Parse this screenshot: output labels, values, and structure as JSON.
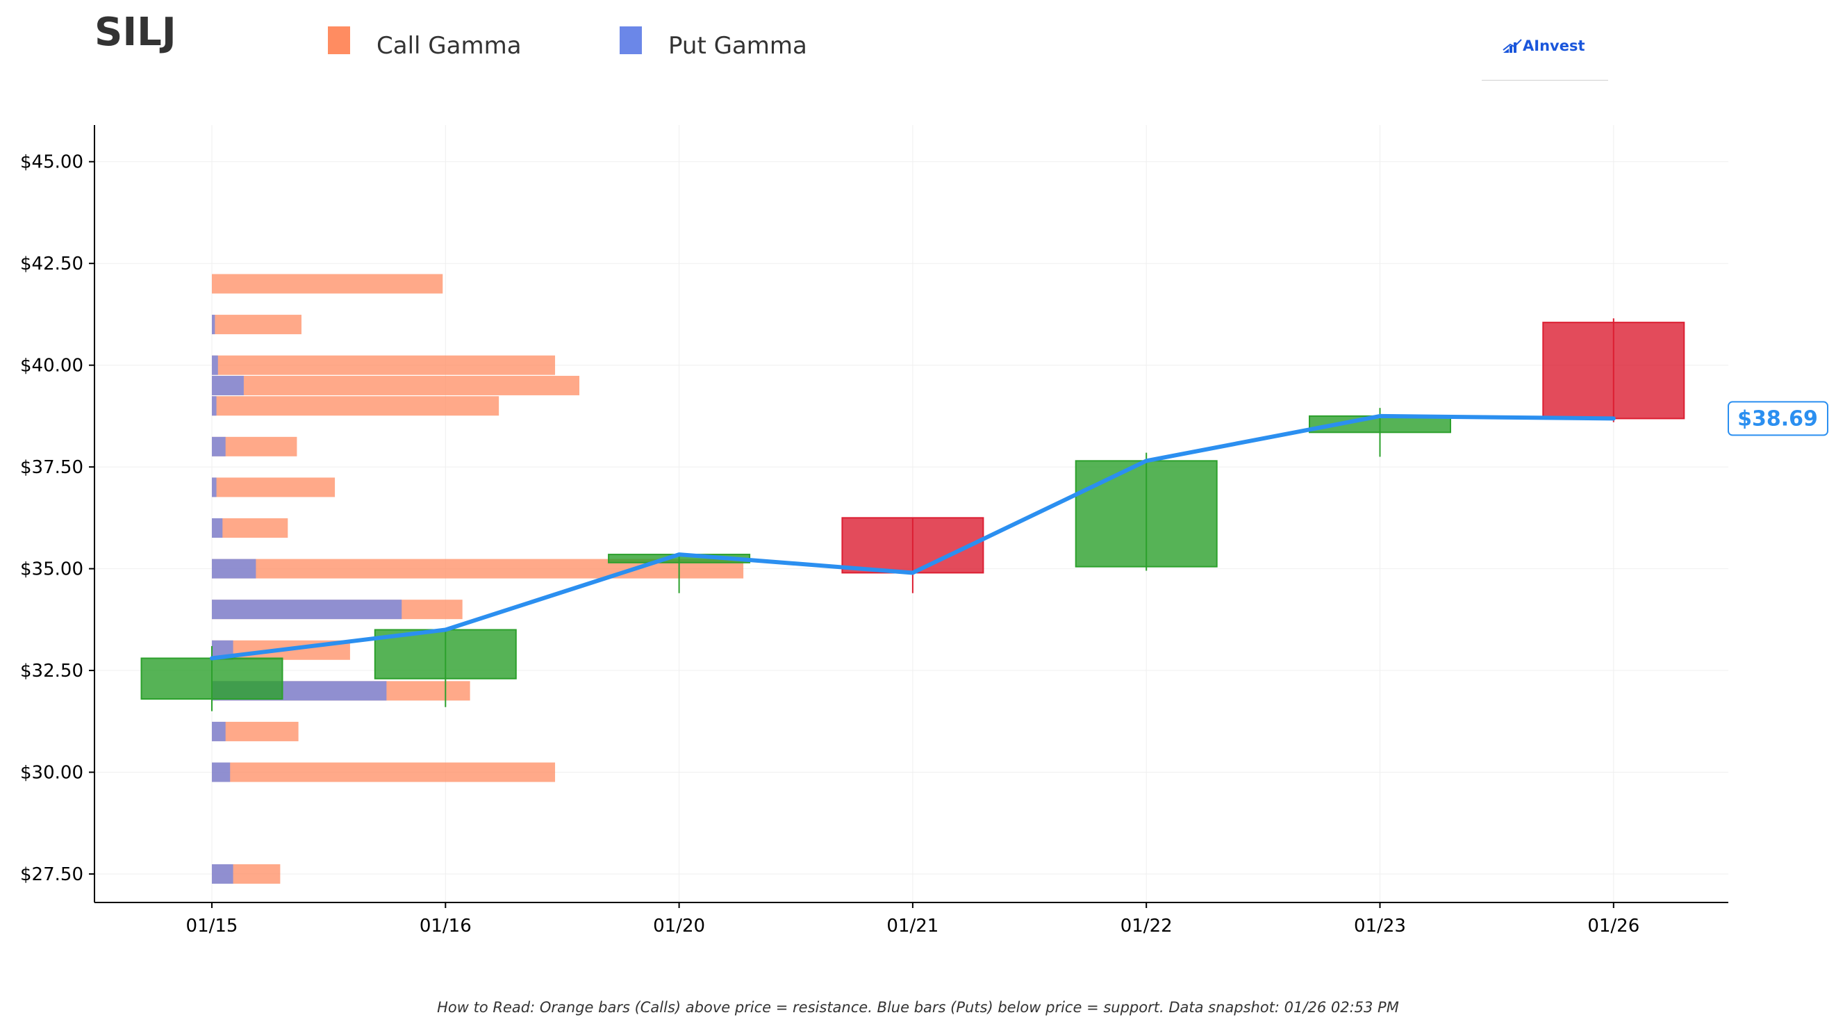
{
  "header": {
    "ticker": "SILJ",
    "legend": [
      {
        "label": "Call Gamma",
        "color": "#ff8c61"
      },
      {
        "label": "Put Gamma",
        "color": "#6b87e8"
      }
    ],
    "brand": "AInvest"
  },
  "footer": {
    "note": "How to Read: Orange bars (Calls) above price = resistance. Blue bars (Puts) below price = support. Data snapshot: 01/26 02:53 PM"
  },
  "chart_data": {
    "type": "candlestick with gamma exposure bars",
    "ylim": [
      26.8,
      45.9
    ],
    "yticks": [
      27.5,
      30.0,
      32.5,
      35.0,
      37.5,
      40.0,
      42.5,
      45.0
    ],
    "ytick_labels": [
      "$27.50",
      "$30.00",
      "$32.50",
      "$35.00",
      "$37.50",
      "$40.00",
      "$42.50",
      "$45.00"
    ],
    "categories": [
      "01/15",
      "01/16",
      "01/20",
      "01/21",
      "01/22",
      "01/23",
      "01/26"
    ],
    "grid": true,
    "colors": {
      "up": "#2ca02c",
      "down": "#dc1e32",
      "line": "#2b8ff0",
      "call": "#ff8c61",
      "put": "#6b87e8"
    },
    "candles": [
      {
        "date": "01/15",
        "open": 31.8,
        "close": 32.8,
        "high": 33.1,
        "low": 31.5
      },
      {
        "date": "01/16",
        "open": 32.3,
        "close": 33.5,
        "high": 33.5,
        "low": 31.6
      },
      {
        "date": "01/20",
        "open": 35.15,
        "close": 35.35,
        "high": 35.35,
        "low": 34.4
      },
      {
        "date": "01/21",
        "open": 36.25,
        "close": 34.9,
        "high": 36.25,
        "low": 34.4
      },
      {
        "date": "01/22",
        "open": 35.05,
        "close": 37.65,
        "high": 37.85,
        "low": 34.95
      },
      {
        "date": "01/23",
        "open": 38.35,
        "close": 38.75,
        "high": 38.95,
        "low": 37.75
      },
      {
        "date": "01/26",
        "open": 41.05,
        "close": 38.69,
        "high": 41.15,
        "low": 38.6
      }
    ],
    "close_line": [
      32.8,
      33.5,
      35.35,
      34.9,
      37.65,
      38.75,
      38.69
    ],
    "last_price_label": "$38.69",
    "gamma_levels": [
      {
        "strike": 42.0,
        "call": 1.52,
        "put": 0.0
      },
      {
        "strike": 41.0,
        "call": 0.59,
        "put": 0.02
      },
      {
        "strike": 40.0,
        "call": 2.26,
        "put": 0.04
      },
      {
        "strike": 39.5,
        "call": 2.42,
        "put": 0.21
      },
      {
        "strike": 39.0,
        "call": 1.89,
        "put": 0.03
      },
      {
        "strike": 38.0,
        "call": 0.56,
        "put": 0.09
      },
      {
        "strike": 37.0,
        "call": 0.81,
        "put": 0.03
      },
      {
        "strike": 36.0,
        "call": 0.5,
        "put": 0.07
      },
      {
        "strike": 35.0,
        "call": 3.5,
        "put": 0.29
      },
      {
        "strike": 34.0,
        "call": 1.65,
        "put": 1.25
      },
      {
        "strike": 33.0,
        "call": 0.91,
        "put": 0.14
      },
      {
        "strike": 32.0,
        "call": 1.7,
        "put": 1.15
      },
      {
        "strike": 31.0,
        "call": 0.57,
        "put": 0.09
      },
      {
        "strike": 30.0,
        "call": 2.26,
        "put": 0.12
      },
      {
        "strike": 27.5,
        "call": 0.45,
        "put": 0.14
      }
    ]
  }
}
